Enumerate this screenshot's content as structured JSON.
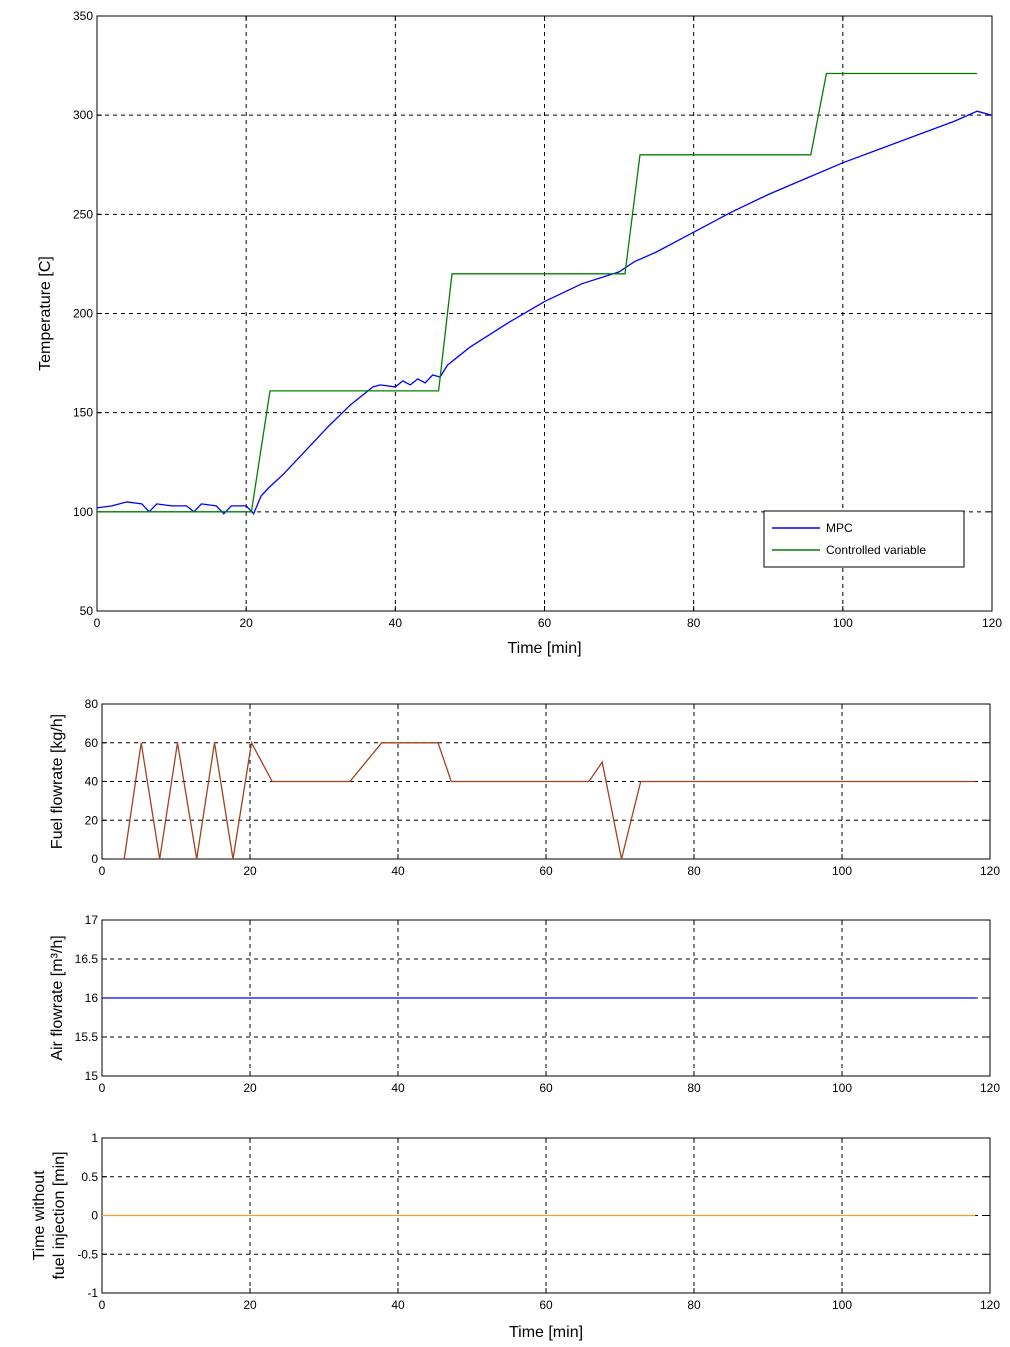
{
  "chart_data": [
    {
      "type": "line",
      "ylabel": "Temperature [C]",
      "xlabel": "Time [min]",
      "xlim": [
        0,
        120
      ],
      "ylim": [
        50,
        350
      ],
      "xticks": [
        0,
        20,
        40,
        60,
        80,
        100,
        120
      ],
      "yticks": [
        50,
        100,
        150,
        200,
        250,
        300,
        350
      ],
      "grid": true,
      "legend_position": "bottom-right",
      "series": [
        {
          "name": "MPC",
          "color": "#0000ff",
          "x": [
            0,
            2,
            4,
            6,
            7,
            8,
            10,
            12,
            13,
            14,
            16,
            17,
            18,
            19,
            20,
            21,
            22,
            23,
            25,
            28,
            31,
            34,
            37,
            38,
            40,
            41,
            42,
            43,
            44,
            45,
            46,
            47,
            50,
            55,
            60,
            65,
            70,
            72,
            75,
            80,
            85,
            90,
            95,
            100,
            105,
            110,
            115,
            118,
            120
          ],
          "y": [
            102,
            103,
            105,
            104,
            100,
            104,
            103,
            103,
            100,
            104,
            103,
            99,
            103,
            103,
            103,
            99,
            108,
            112,
            119,
            131,
            143,
            154,
            163,
            164,
            163,
            166,
            164,
            167,
            165,
            169,
            168,
            174,
            183,
            195,
            206,
            215,
            221,
            226,
            231,
            241,
            251,
            260,
            268,
            276,
            283,
            290,
            297,
            302,
            300
          ]
        },
        {
          "name": "Controlled variable",
          "color": "#008000",
          "x": [
            0,
            20.7,
            23.2,
            45.8,
            47.6,
            70.8,
            72.8,
            95.7,
            97.8,
            118
          ],
          "y": [
            100,
            100,
            161,
            161,
            220,
            220,
            280,
            280,
            321,
            321
          ]
        }
      ]
    },
    {
      "type": "line",
      "ylabel": "Fuel flowrate [kg/h]",
      "xlabel": "",
      "xlim": [
        0,
        120
      ],
      "ylim": [
        0,
        80
      ],
      "xticks": [
        0,
        20,
        40,
        60,
        80,
        100,
        120
      ],
      "yticks": [
        0,
        20,
        40,
        60,
        80
      ],
      "grid": true,
      "series": [
        {
          "color": "#a0421e",
          "x": [
            3,
            5.3,
            7.8,
            10.2,
            12.8,
            15.2,
            17.7,
            20.2,
            23,
            33.5,
            37.8,
            45.4,
            47.2,
            65.8,
            67.6,
            70.2,
            72.8,
            118
          ],
          "y": [
            0,
            60,
            0,
            60,
            0,
            60,
            0,
            60,
            40,
            40,
            60,
            60,
            40,
            40,
            50,
            0,
            40,
            40
          ]
        }
      ]
    },
    {
      "type": "line",
      "ylabel": "Air flowrate [m³/h]",
      "xlabel": "",
      "xlim": [
        0,
        120
      ],
      "ylim": [
        15,
        17
      ],
      "xticks": [
        0,
        20,
        40,
        60,
        80,
        100,
        120
      ],
      "yticks": [
        15,
        15.5,
        16,
        16.5,
        17
      ],
      "grid": true,
      "series": [
        {
          "color": "#0000ff",
          "x": [
            0,
            118
          ],
          "y": [
            16,
            16
          ]
        }
      ]
    },
    {
      "type": "line",
      "ylabel": "Time without fuel injection [min]",
      "xlabel": "Time [min]",
      "xlim": [
        0,
        120
      ],
      "ylim": [
        -1,
        1
      ],
      "xticks": [
        0,
        20,
        40,
        60,
        80,
        100,
        120
      ],
      "yticks": [
        -1,
        -0.5,
        0,
        0.5,
        1
      ],
      "grid": true,
      "series": [
        {
          "color": "#f0a030",
          "x": [
            0,
            118
          ],
          "y": [
            0,
            0
          ]
        }
      ]
    }
  ]
}
